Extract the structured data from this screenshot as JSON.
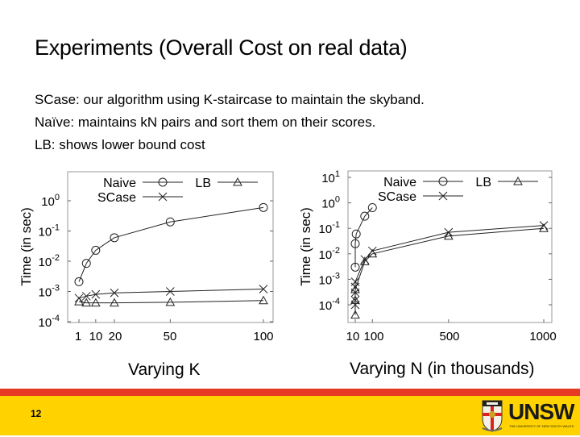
{
  "slide": {
    "title": "Experiments (Overall Cost on real data)",
    "bullets": [
      "SCase: our algorithm using K-staircase to maintain the skyband.",
      "Naïve: maintains kN pairs and sort them on their scores.",
      "LB: shows lower bound cost"
    ],
    "captions": [
      "Varying K",
      "Varying N (in thousands)"
    ],
    "page_number": "12",
    "logo": {
      "word": "UNSW",
      "subtitle": "THE UNIVERSITY OF NEW SOUTH WALES"
    },
    "colors": {
      "footer_red": "#e63a24",
      "footer_yellow": "#ffd200"
    }
  },
  "chart_data": [
    {
      "type": "line",
      "title": "Varying K",
      "xlabel": "",
      "ylabel": "Time (in sec)",
      "yscale": "log",
      "ylim": [
        0.0001,
        10
      ],
      "yticks": [
        "10^0",
        "10^-1",
        "10^-2",
        "10^-3",
        "10^-4"
      ],
      "xticks": [
        "1",
        "10",
        "20",
        "50",
        "100"
      ],
      "x": [
        1,
        5,
        10,
        20,
        50,
        100
      ],
      "legend": [
        "Naive",
        "SCase",
        "LB"
      ],
      "legend_position": "top-inside",
      "grid": false,
      "series": [
        {
          "name": "Naive",
          "marker": "circle",
          "values": [
            0.0021,
            0.0085,
            0.023,
            0.06,
            0.2,
            0.6
          ]
        },
        {
          "name": "SCase",
          "marker": "x",
          "values": [
            0.0006,
            0.0007,
            0.0008,
            0.0009,
            0.001,
            0.0012
          ]
        },
        {
          "name": "LB",
          "marker": "triangle",
          "values": [
            0.00046,
            0.00042,
            0.00042,
            0.00042,
            0.00044,
            0.0005
          ]
        }
      ]
    },
    {
      "type": "line",
      "title": "Varying N (in thousands)",
      "xlabel": "",
      "ylabel": "Time (in sec)",
      "yscale": "log",
      "ylim": [
        2e-05,
        10
      ],
      "yticks": [
        "10^1",
        "10^0",
        "10^-1",
        "10^-2",
        "10^-3",
        "10^-4"
      ],
      "xticks": [
        "10",
        "100",
        "500",
        "1000"
      ],
      "legend": [
        "Naive",
        "SCase",
        "LB"
      ],
      "legend_position": "top-inside",
      "grid": false,
      "series": [
        {
          "name": "Naive",
          "marker": "circle",
          "x": [
            10,
            10,
            15,
            60,
            100
          ],
          "values": [
            0.003,
            0.025,
            0.06,
            0.3,
            0.65
          ]
        },
        {
          "name": "SCase",
          "marker": "x",
          "x": [
            10,
            10,
            10,
            10,
            10,
            60,
            100,
            500,
            1000
          ],
          "values": [
            0.0001,
            0.00015,
            0.0003,
            0.0005,
            0.0008,
            0.006,
            0.013,
            0.07,
            0.13
          ]
        },
        {
          "name": "LB",
          "marker": "triangle",
          "x": [
            10,
            10,
            10,
            60,
            100,
            500,
            1000
          ],
          "values": [
            4e-05,
            0.00015,
            0.0004,
            0.005,
            0.01,
            0.05,
            0.1
          ]
        }
      ]
    }
  ]
}
